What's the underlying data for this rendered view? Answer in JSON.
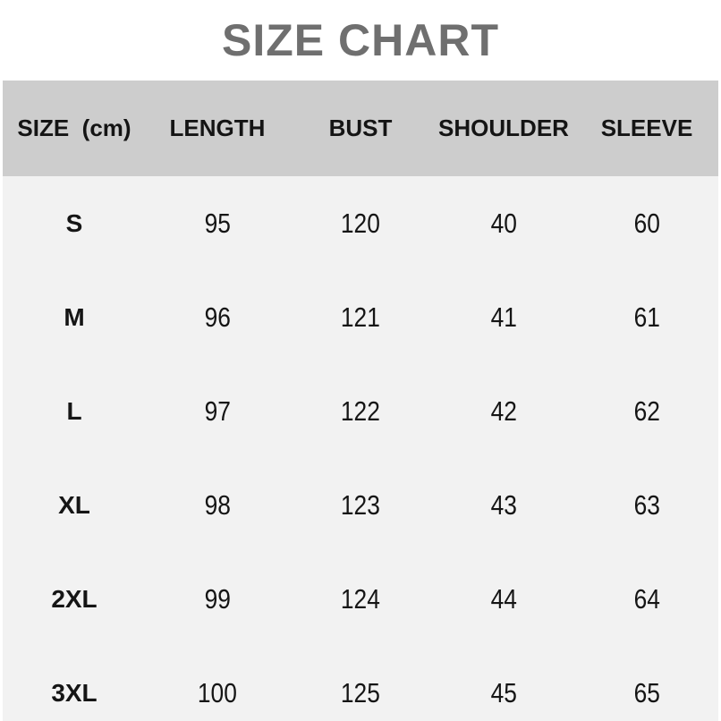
{
  "title": "SIZE CHART",
  "colors": {
    "title_text": "#6f6f6f",
    "header_bg": "#cdcdcd",
    "body_bg": "#f2f2f2",
    "header_text": "#141414",
    "body_text": "#151515"
  },
  "chart_data": {
    "type": "table",
    "title": "SIZE CHART",
    "unit": "cm",
    "columns": [
      "SIZE  (cm)",
      "LENGTH",
      "BUST",
      "SHOULDER",
      "SLEEVE"
    ],
    "rows": [
      {
        "size": "S",
        "values": [
          "95",
          "120",
          "40",
          "60"
        ]
      },
      {
        "size": "M",
        "values": [
          "96",
          "121",
          "41",
          "61"
        ]
      },
      {
        "size": "L",
        "values": [
          "97",
          "122",
          "42",
          "62"
        ]
      },
      {
        "size": "XL",
        "values": [
          "98",
          "123",
          "43",
          "63"
        ]
      },
      {
        "size": "2XL",
        "values": [
          "99",
          "124",
          "44",
          "64"
        ]
      },
      {
        "size": "3XL",
        "values": [
          "100",
          "125",
          "45",
          "65"
        ]
      }
    ]
  }
}
